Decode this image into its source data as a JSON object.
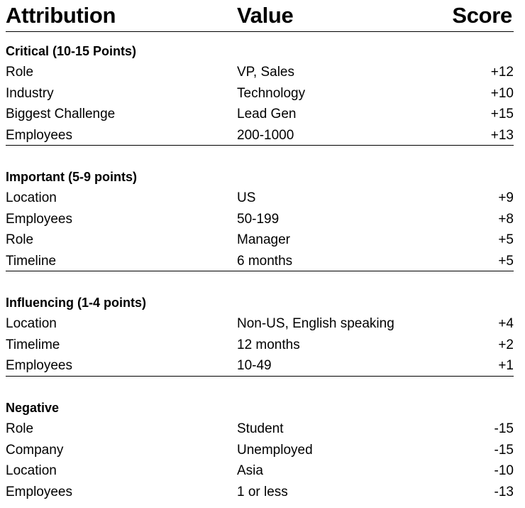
{
  "header": {
    "attribution": "Attribution",
    "value": "Value",
    "score": "Score"
  },
  "sections": [
    {
      "title": "Critical (10-15 Points)",
      "rows": [
        {
          "attribution": "Role",
          "value": "VP, Sales",
          "score": "+12"
        },
        {
          "attribution": "Industry",
          "value": "Technology",
          "score": "+10"
        },
        {
          "attribution": "Biggest Challenge",
          "value": "Lead Gen",
          "score": "+15"
        },
        {
          "attribution": "Employees",
          "value": "200-1000",
          "score": "+13"
        }
      ]
    },
    {
      "title": "Important (5-9 points)",
      "rows": [
        {
          "attribution": "Location",
          "value": "US",
          "score": "+9"
        },
        {
          "attribution": "Employees",
          "value": "50-199",
          "score": "+8"
        },
        {
          "attribution": "Role",
          "value": "Manager",
          "score": "+5"
        },
        {
          "attribution": "Timeline",
          "value": "6 months",
          "score": "+5"
        }
      ]
    },
    {
      "title": "Influencing (1-4 points)",
      "rows": [
        {
          "attribution": "Location",
          "value": "Non-US, English speaking",
          "score": "+4"
        },
        {
          "attribution": "Timelime",
          "value": "12 months",
          "score": "+2"
        },
        {
          "attribution": "Employees",
          "value": "10-49",
          "score": "+1"
        }
      ]
    },
    {
      "title": "Negative",
      "rows": [
        {
          "attribution": "Role",
          "value": "Student",
          "score": "-15"
        },
        {
          "attribution": "Company",
          "value": "Unemployed",
          "score": "-15"
        },
        {
          "attribution": "Location",
          "value": "Asia",
          "score": "-10"
        },
        {
          "attribution": "Employees",
          "value": "1 or less",
          "score": "-13"
        }
      ]
    }
  ]
}
